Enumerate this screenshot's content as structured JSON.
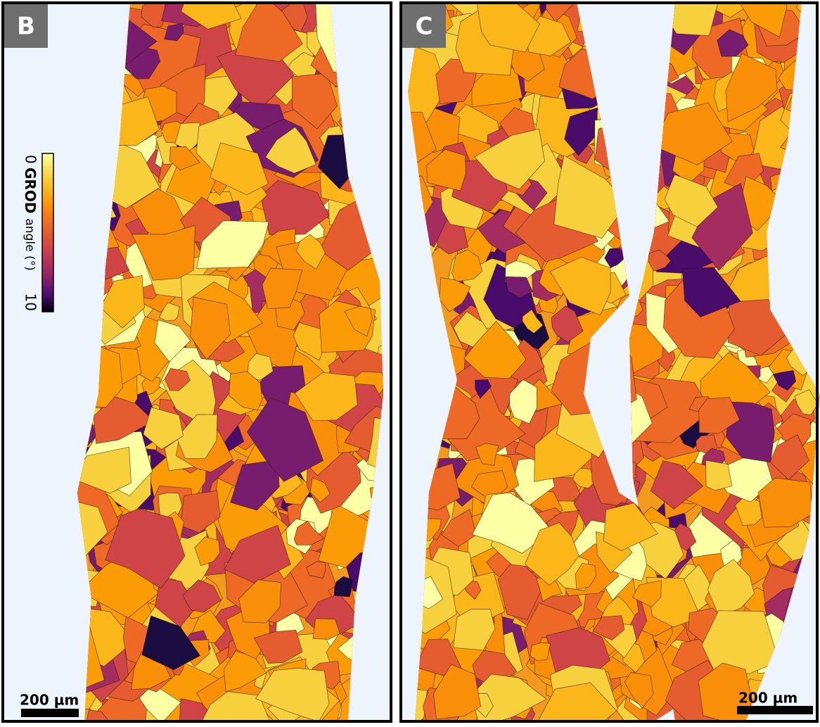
{
  "panels": [
    {
      "label": "B",
      "scale_bar": "200 µm"
    },
    {
      "label": "C",
      "scale_bar": "200 µm"
    }
  ],
  "colorbar": {
    "min": 0,
    "max": 10,
    "label_bold": "GROD",
    "label": "angle (°)"
  }
}
